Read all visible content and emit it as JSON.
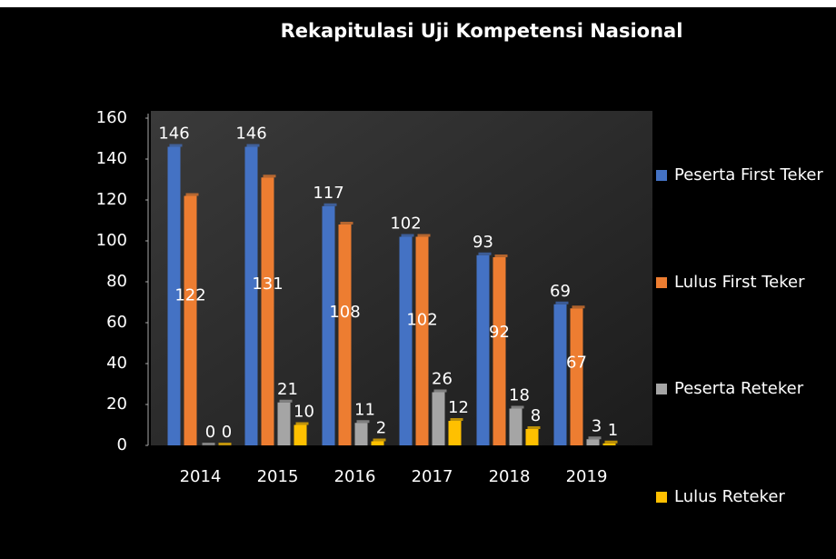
{
  "chart_data": {
    "type": "bar",
    "title": "Rekapitulasi  Uji Kompetensi Nasional",
    "categories": [
      "2014",
      "2015",
      "2016",
      "2017",
      "2018",
      "2019"
    ],
    "series": [
      {
        "name": "Peserta First Teker",
        "color": "#4472c4",
        "values": [
          146,
          146,
          117,
          102,
          93,
          69
        ]
      },
      {
        "name": "Lulus First Teker",
        "color": "#ed7d31",
        "values": [
          122,
          131,
          108,
          102,
          92,
          67
        ]
      },
      {
        "name": "Peserta Reteker",
        "color": "#a5a5a5",
        "values": [
          0,
          21,
          11,
          26,
          18,
          3
        ]
      },
      {
        "name": "Lulus Reteker",
        "color": "#ffc000",
        "values": [
          0,
          10,
          2,
          12,
          8,
          1
        ]
      }
    ],
    "ylim": [
      0,
      160
    ],
    "yticks": [
      0,
      20,
      40,
      60,
      80,
      100,
      120,
      140,
      160
    ],
    "legend": "right"
  }
}
